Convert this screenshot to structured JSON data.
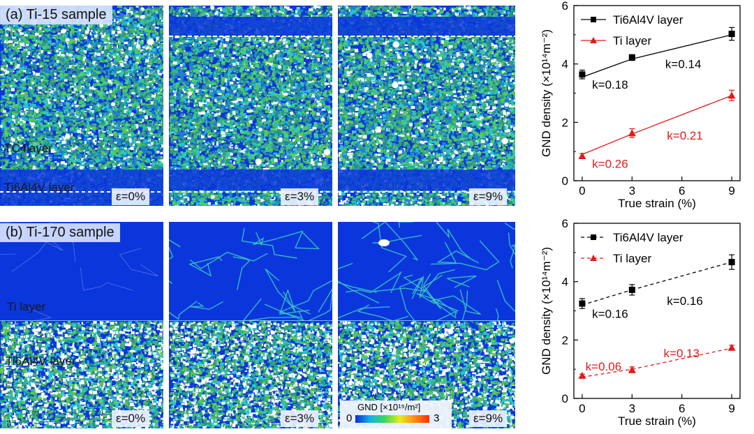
{
  "panels": {
    "a": {
      "label": "(a) Ti-15 sample",
      "layer_labels": [
        "TC4layer",
        "Ti6Al4V layer"
      ],
      "strains": [
        "ε=0%",
        "ε=3%",
        "ε=9%"
      ]
    },
    "b": {
      "label": "(b) Ti-170 sample",
      "layer_labels": [
        "Ti layer",
        "Ti6Al4V layer"
      ],
      "strains": [
        "ε=0%",
        "ε=3%",
        "ε=9%"
      ]
    }
  },
  "colorbar": {
    "title": "GND [×10¹⁵/m²]",
    "min": "0",
    "max": "3",
    "colors": [
      "#0a2ad6",
      "#12b3e6",
      "#3fd65a",
      "#e8ec1a",
      "#ff8c10",
      "#ff2a00"
    ]
  },
  "chart_data": [
    {
      "type": "line",
      "xlabel": "True strain (%)",
      "ylabel": "GND density (×10¹⁴m⁻²)",
      "xlim": [
        -0.5,
        9.5
      ],
      "ylim": [
        0,
        6
      ],
      "xticks": [
        0,
        3,
        6,
        9
      ],
      "yticks": [
        0,
        2,
        4,
        6
      ],
      "grid": false,
      "legend_position": "top-left",
      "series": [
        {
          "name": "Ti6Al4V layer",
          "color": "#000000",
          "marker": "square",
          "line": "solid",
          "x": [
            0,
            3,
            9
          ],
          "y": [
            3.64,
            4.22,
            5.03
          ],
          "err": [
            0.15,
            0.1,
            0.22
          ],
          "fit": [
            [
              0,
              3.55
            ],
            [
              3,
              4.17
            ],
            [
              9,
              5.0
            ]
          ]
        },
        {
          "name": "Ti layer",
          "color": "#e01b1b",
          "marker": "triangle",
          "line": "solid",
          "x": [
            0,
            3,
            9
          ],
          "y": [
            0.85,
            1.63,
            2.92
          ],
          "err": [
            0.08,
            0.15,
            0.18
          ],
          "fit": [
            [
              0,
              0.9
            ],
            [
              3,
              1.6
            ],
            [
              9,
              2.92
            ]
          ]
        }
      ],
      "annotations": [
        {
          "text": "k=0.14",
          "x": 5.0,
          "y": 4.0,
          "color": "#000000"
        },
        {
          "text": "k=0.18",
          "x": 0.6,
          "y": 3.3,
          "color": "#000000"
        },
        {
          "text": "k=0.21",
          "x": 5.1,
          "y": 1.55,
          "color": "#e01b1b"
        },
        {
          "text": "k=0.26",
          "x": 0.6,
          "y": 0.58,
          "color": "#e01b1b"
        }
      ]
    },
    {
      "type": "line",
      "xlabel": "True strain (%)",
      "ylabel": "GND density (×10¹⁴m⁻²)",
      "xlim": [
        -0.5,
        9.5
      ],
      "ylim": [
        0,
        6
      ],
      "xticks": [
        0,
        3,
        6,
        9
      ],
      "yticks": [
        0,
        2,
        4,
        6
      ],
      "grid": false,
      "legend_position": "top-left",
      "series": [
        {
          "name": "Ti6Al4V layer",
          "color": "#000000",
          "marker": "square",
          "line": "dashed",
          "x": [
            0,
            3,
            9
          ],
          "y": [
            3.25,
            3.72,
            4.67
          ],
          "err": [
            0.17,
            0.18,
            0.25
          ],
          "fit": [
            [
              0,
              3.2
            ],
            [
              3,
              3.72
            ],
            [
              9,
              4.67
            ]
          ]
        },
        {
          "name": "Ti layer",
          "color": "#e01b1b",
          "marker": "triangle",
          "line": "dashed",
          "x": [
            0,
            3,
            9
          ],
          "y": [
            0.78,
            0.98,
            1.74
          ],
          "err": [
            0.05,
            0.1,
            0.08
          ],
          "fit": [
            [
              0,
              0.73
            ],
            [
              3,
              1.0
            ],
            [
              9,
              1.72
            ]
          ]
        }
      ],
      "annotations": [
        {
          "text": "k=0.16",
          "x": 5.1,
          "y": 3.35,
          "color": "#000000"
        },
        {
          "text": "k=0.16",
          "x": 0.6,
          "y": 2.9,
          "color": "#000000"
        },
        {
          "text": "k=0.13",
          "x": 4.9,
          "y": 1.55,
          "color": "#e01b1b"
        },
        {
          "text": "k=0.06",
          "x": 0.2,
          "y": 1.1,
          "color": "#e01b1b"
        }
      ]
    }
  ]
}
